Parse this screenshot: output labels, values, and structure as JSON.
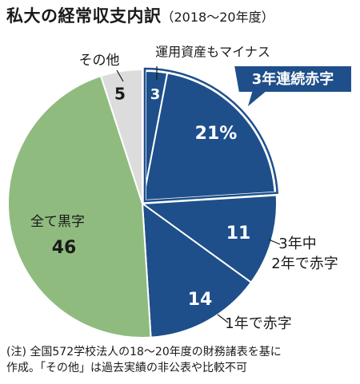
{
  "title": "私大の経常収支内訳",
  "subtitle": "（2018～20年度）",
  "chart_data": {
    "type": "pie",
    "unit": "%",
    "slices": [
      {
        "label": "運用資産もマイナス",
        "value": 3,
        "value_text": "3",
        "color": "#1e4f8a",
        "group": "3年連続赤字"
      },
      {
        "label": "",
        "value": 21,
        "value_text": "21%",
        "color": "#1e4f8a",
        "group": "3年連続赤字"
      },
      {
        "label": "3年中\n2年で赤字",
        "value": 11,
        "value_text": "11",
        "color": "#1e4f8a"
      },
      {
        "label": "1年で赤字",
        "value": 14,
        "value_text": "14",
        "color": "#1e4f8a"
      },
      {
        "label": "全て黒字",
        "value": 46,
        "value_text": "46",
        "color": "#8fbb7f"
      },
      {
        "label": "その他",
        "value": 5,
        "value_text": "5",
        "color": "#dcdcdc"
      }
    ],
    "group_label": "3年連続赤字",
    "group_color": "#1e4f8a"
  },
  "note": {
    "line1": "(注) 全国572学校法人の18～20年度の財務諸表を基に",
    "line2": "作成。「その他」は過去実績の非公表や比較不可"
  }
}
